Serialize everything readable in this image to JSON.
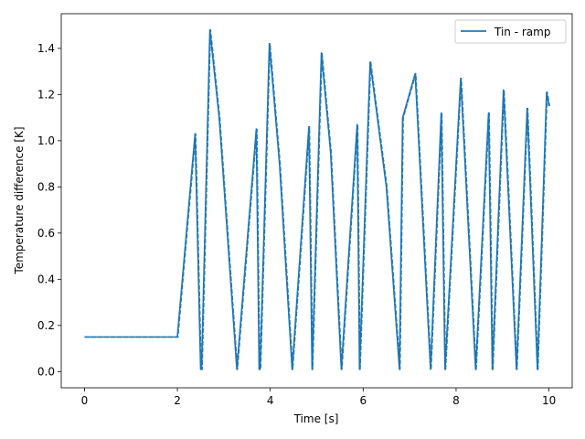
{
  "chart_data": {
    "type": "line",
    "title": "",
    "xlabel": "Time [s]",
    "ylabel": "Temperature difference [K]",
    "xlim": [
      -0.5,
      10.5
    ],
    "ylim": [
      -0.07,
      1.55
    ],
    "xticks": [
      0,
      2,
      4,
      6,
      8,
      10
    ],
    "yticks": [
      0.0,
      0.2,
      0.4,
      0.6,
      0.8,
      1.0,
      1.2,
      1.4
    ],
    "xtick_labels": [
      "0",
      "2",
      "4",
      "6",
      "8",
      "10"
    ],
    "ytick_labels": [
      "0.0",
      "0.2",
      "0.4",
      "0.6",
      "0.8",
      "1.0",
      "1.2",
      "1.4"
    ],
    "grid": false,
    "legend_position": "top-right",
    "series": [
      {
        "name": "Tin - ramp",
        "color": "#1f77b4",
        "x": [
          0,
          2.0,
          2.38,
          2.5,
          2.52,
          2.7,
          2.9,
          3.28,
          3.7,
          3.76,
          3.78,
          3.98,
          4.2,
          4.47,
          4.83,
          4.9,
          5.1,
          5.3,
          5.53,
          5.87,
          5.92,
          6.15,
          6.5,
          6.78,
          6.85,
          7.12,
          7.45,
          7.68,
          7.76,
          8.1,
          8.42,
          8.7,
          8.78,
          9.02,
          9.3,
          9.53,
          9.75,
          9.95,
          10.0
        ],
        "y": [
          0.15,
          0.15,
          1.03,
          0.01,
          0.01,
          1.48,
          1.1,
          0.01,
          1.05,
          0.01,
          0.01,
          1.42,
          0.9,
          0.01,
          1.06,
          0.01,
          1.38,
          0.95,
          0.01,
          1.07,
          0.01,
          1.34,
          0.8,
          0.01,
          1.1,
          1.29,
          0.01,
          1.12,
          0.01,
          1.27,
          0.01,
          1.12,
          0.01,
          1.22,
          0.01,
          1.14,
          0.01,
          1.21,
          1.15
        ]
      }
    ]
  }
}
